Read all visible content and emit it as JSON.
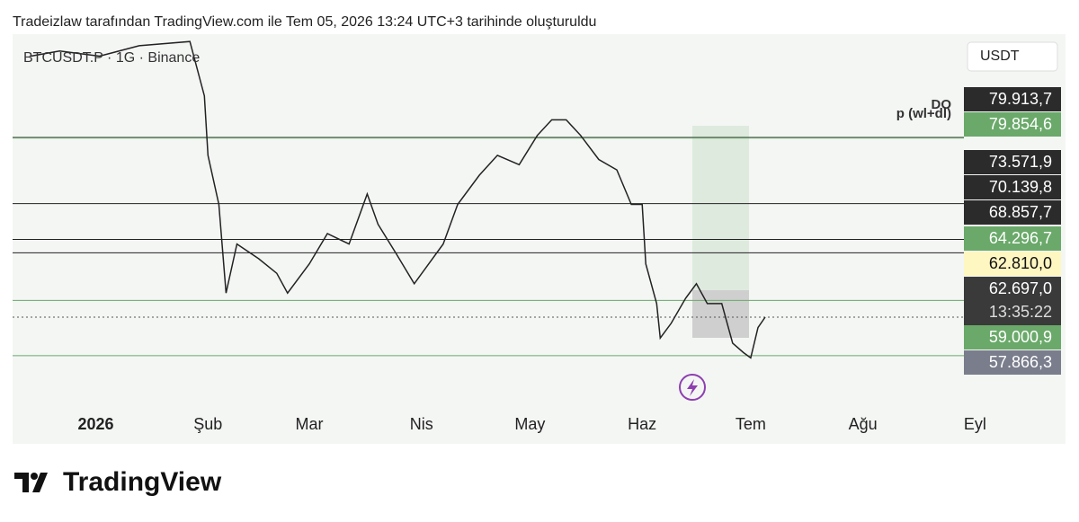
{
  "header": "Tradeizlaw tarafından TradingView.com ile Tem 05, 2026 13:24 UTC+3 tarihinde oluşturuldu",
  "brand": "TradingView",
  "chart_data": {
    "type": "line",
    "symbol": "BTCUSDT.P · 1G · Binance",
    "currency": "USDT",
    "countdown": "13:35:22",
    "annotations": [
      "DO",
      "p (wl+dl)"
    ],
    "color": "#222222",
    "x": [
      -18,
      -10,
      1,
      12,
      26,
      30,
      31,
      34,
      36,
      39,
      45,
      50,
      53,
      59,
      64,
      70,
      75,
      78,
      83,
      88,
      92,
      96,
      100,
      106,
      111,
      117,
      122,
      126,
      130,
      134,
      139,
      144,
      148,
      151,
      152,
      155,
      156,
      159,
      163,
      166,
      169,
      173,
      176,
      179,
      181,
      183,
      185
    ],
    "values": [
      87700,
      88200,
      87700,
      88700,
      89100,
      83900,
      78200,
      73500,
      65000,
      69700,
      68300,
      66900,
      65000,
      67800,
      70700,
      69700,
      74500,
      71600,
      68800,
      65900,
      67800,
      69700,
      73500,
      76300,
      78200,
      77300,
      80100,
      81600,
      81600,
      80100,
      77800,
      76800,
      73500,
      73500,
      67800,
      64000,
      60700,
      62100,
      64500,
      65900,
      64000,
      64000,
      60200,
      59300,
      58800,
      61700,
      62700
    ],
    "xlim": [
      -23,
      268
    ],
    "ylim": [
      50560,
      89810
    ],
    "xticks": [
      {
        "value": 0,
        "label": "2026"
      },
      {
        "value": 31,
        "label": "Şub"
      },
      {
        "value": 59,
        "label": "Mar"
      },
      {
        "value": 90,
        "label": "Nis"
      },
      {
        "value": 120,
        "label": "May"
      },
      {
        "value": 151,
        "label": "Haz"
      },
      {
        "value": 181,
        "label": "Tem"
      },
      {
        "value": 212,
        "label": "Ağu"
      },
      {
        "value": 243,
        "label": "Eyl"
      }
    ],
    "levels": [
      {
        "value": 79913.7,
        "label": "79.913,7",
        "color": "#2b2b2b",
        "line": true
      },
      {
        "value": 79854.6,
        "label": "79.854,6",
        "color": "#6aa96a",
        "line": true
      },
      {
        "value": 73571.9,
        "label": "73.571,9",
        "color": "#2b2b2b",
        "line": true
      },
      {
        "value": 70139.8,
        "label": "70.139,8",
        "color": "#2b2b2b",
        "line": true
      },
      {
        "value": 68857.7,
        "label": "68.857,7",
        "color": "#2b2b2b",
        "line": true
      },
      {
        "value": 64296.7,
        "label": "64.296,7",
        "color": "#6aa96a",
        "line": true
      },
      {
        "value": 62810.0,
        "label": "62.810,0",
        "color": "#fff7c2",
        "line": false
      },
      {
        "value": 62697.0,
        "label": "62.697,0",
        "color": "#3a3a3a",
        "line": true
      },
      {
        "value": 59000.9,
        "label": "59.000,9",
        "color": "#6aa96a",
        "line": true
      },
      {
        "value": 57866.3,
        "label": "57.866,3",
        "color": "#7a7d8c",
        "line": false
      }
    ]
  }
}
